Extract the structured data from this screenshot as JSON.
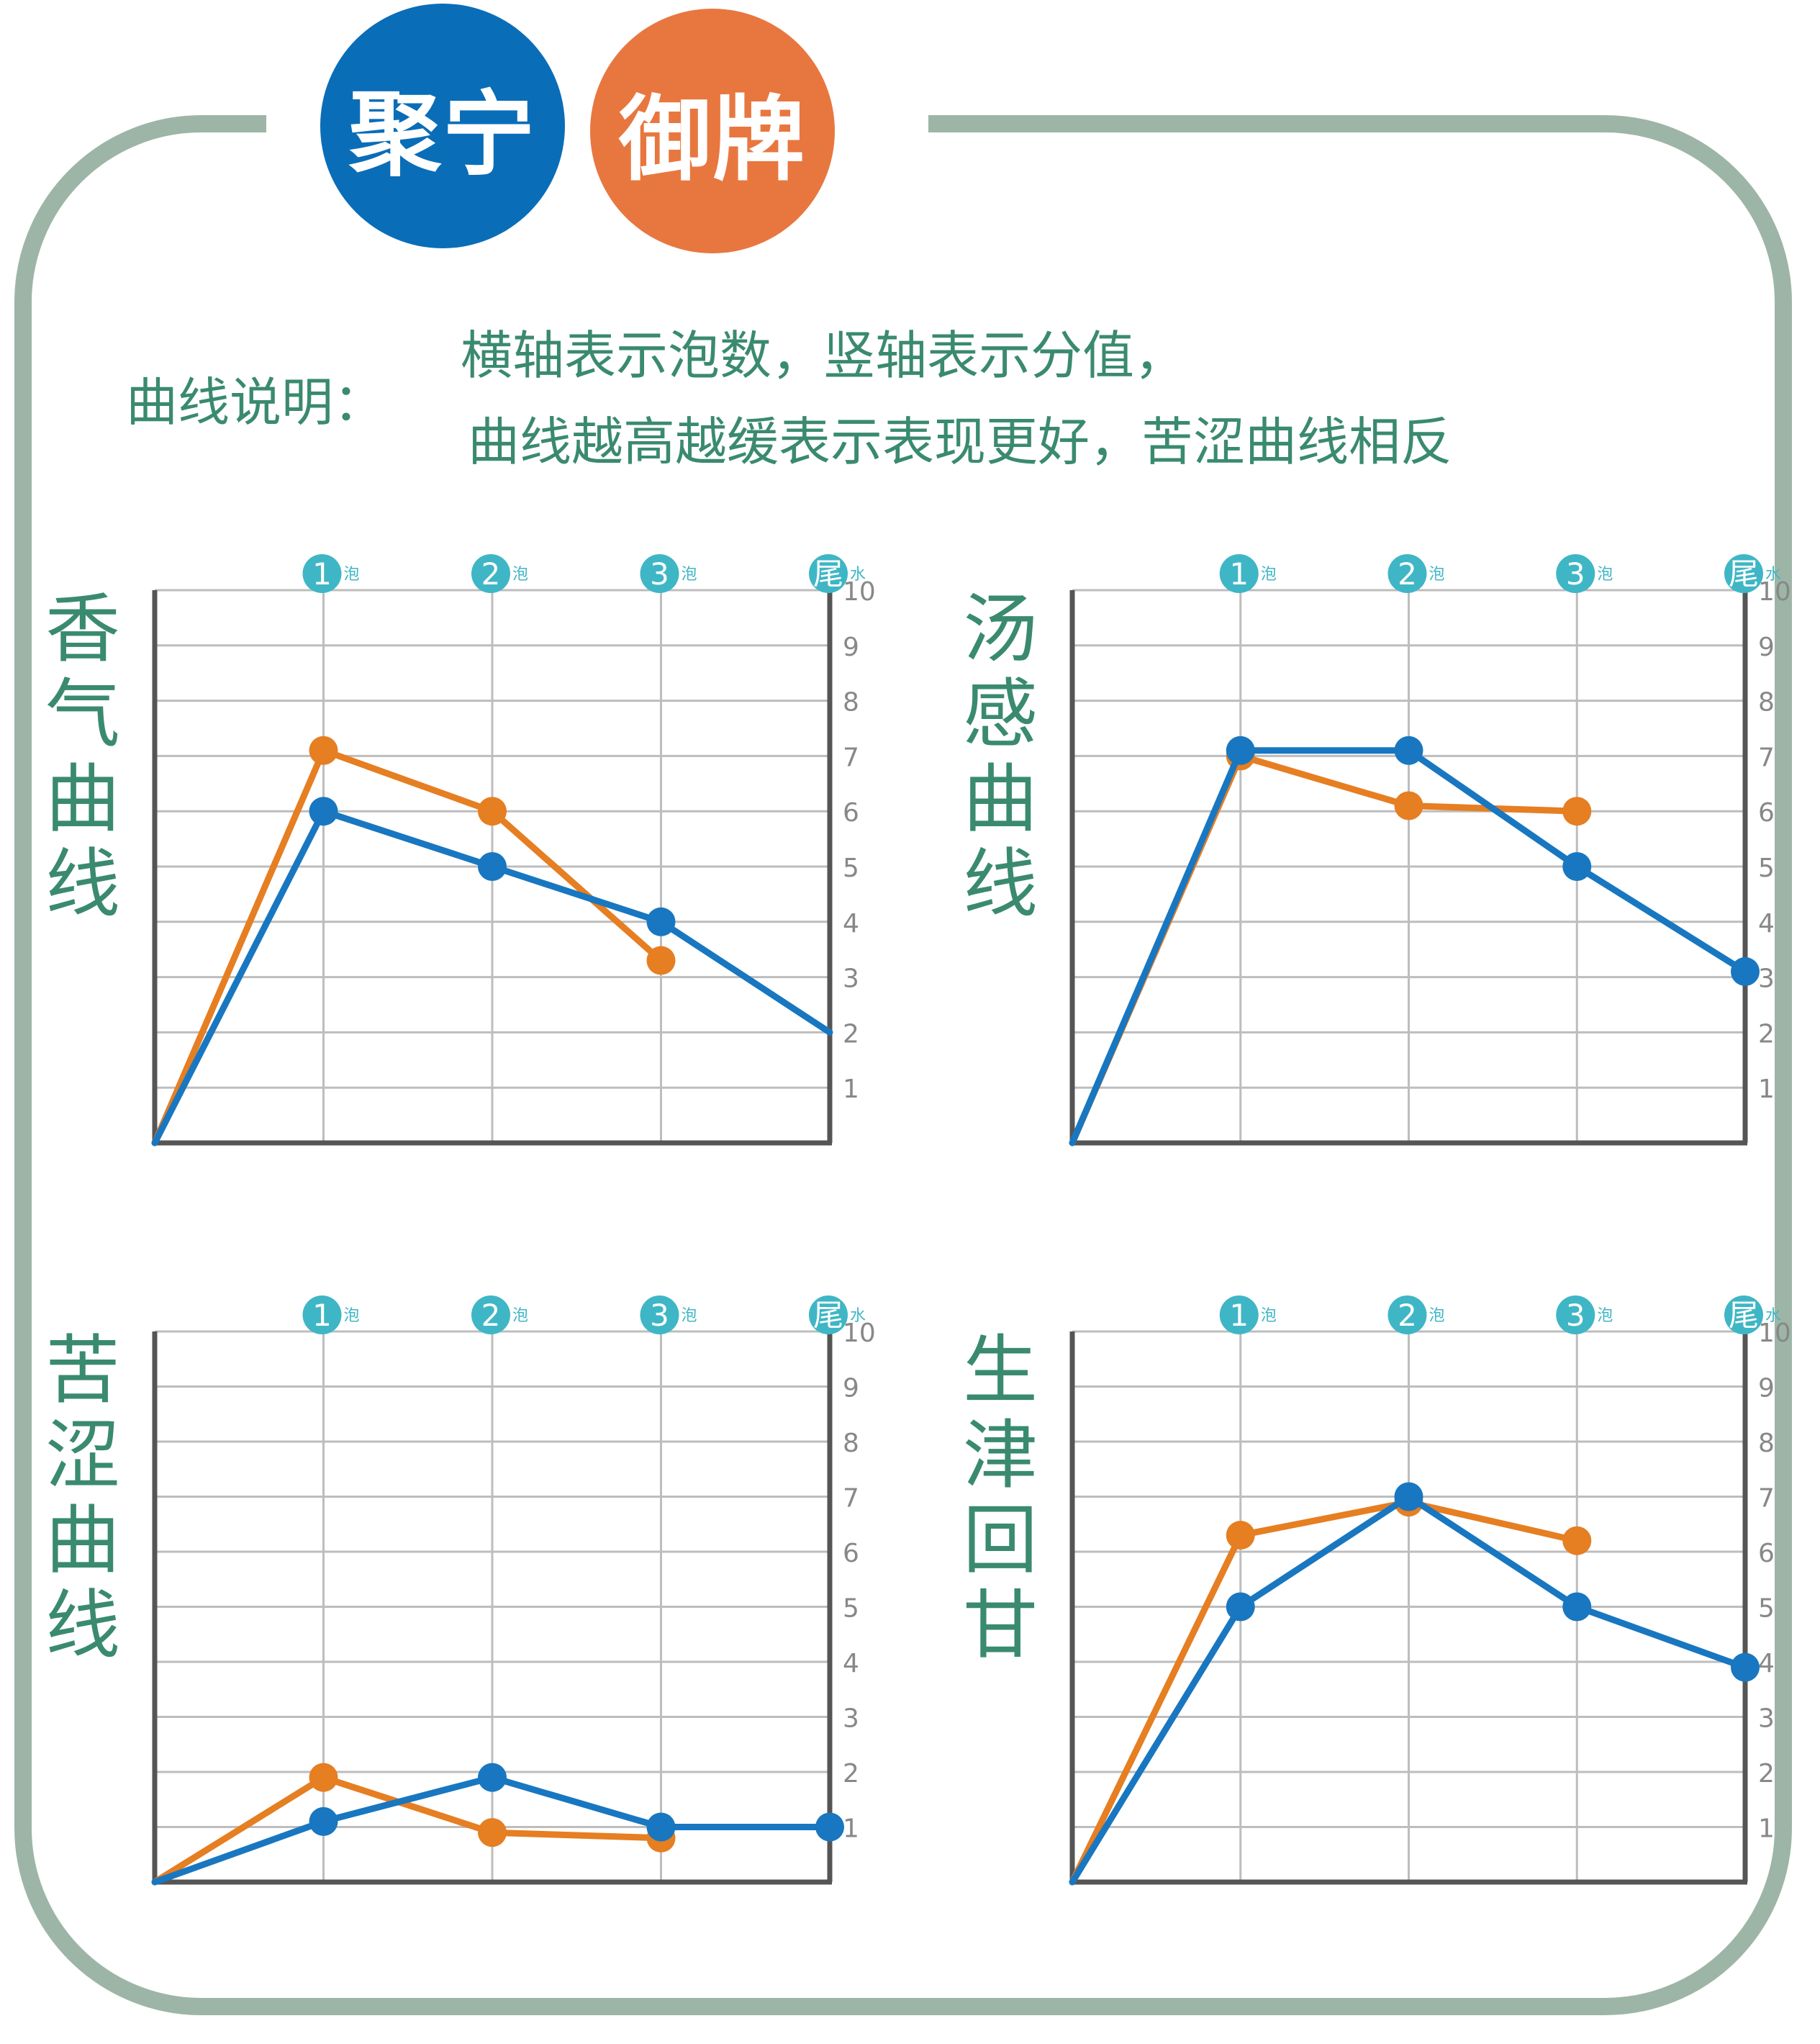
{
  "brand": {
    "left_logo": "聚宁",
    "right_logo": "御牌",
    "left_color": "#0a6db8",
    "right_color": "#e8773f"
  },
  "explanation": {
    "label": "曲线说明：",
    "line1": "横轴表示泡数，竖轴表示分值，",
    "line2": "曲线越高越缓表示表现更好，苦涩曲线相反"
  },
  "colors": {
    "series_blue": "#1877c0",
    "series_orange": "#e67e22",
    "grid": "#bdbdbd",
    "axis": "#555555",
    "marker_bg": "#3fb6c5",
    "text_green": "#3a8a70"
  },
  "chart_data": [
    {
      "type": "line",
      "title": "香气曲线",
      "x_markers": [
        {
          "num": "1",
          "suffix": "泡"
        },
        {
          "num": "2",
          "suffix": "泡"
        },
        {
          "num": "3",
          "suffix": "泡"
        },
        {
          "num": "尾",
          "suffix": "水"
        }
      ],
      "yticks": [
        "1",
        "2",
        "3",
        "4",
        "5",
        "6",
        "7",
        "8",
        "9",
        "10"
      ],
      "ylim": [
        0,
        10
      ],
      "x": [
        0,
        1,
        2,
        3,
        4
      ],
      "series": [
        {
          "color": "blue",
          "values": [
            0,
            6,
            5,
            4,
            2
          ],
          "point_markers": [
            false,
            true,
            true,
            true,
            false
          ]
        },
        {
          "color": "orange",
          "values": [
            0,
            7.1,
            6,
            3.3,
            null
          ],
          "point_markers": [
            false,
            true,
            true,
            true,
            false
          ]
        }
      ]
    },
    {
      "type": "line",
      "title": "汤感曲线",
      "x_markers": [
        {
          "num": "1",
          "suffix": "泡"
        },
        {
          "num": "2",
          "suffix": "泡"
        },
        {
          "num": "3",
          "suffix": "泡"
        },
        {
          "num": "尾",
          "suffix": "水"
        }
      ],
      "yticks": [
        "1",
        "2",
        "3",
        "4",
        "5",
        "6",
        "7",
        "8",
        "9",
        "10"
      ],
      "ylim": [
        0,
        10
      ],
      "x": [
        0,
        1,
        2,
        3,
        4
      ],
      "series": [
        {
          "color": "blue",
          "values": [
            0,
            7.1,
            7.1,
            5,
            3.1
          ],
          "point_markers": [
            false,
            true,
            true,
            true,
            true
          ]
        },
        {
          "color": "orange",
          "values": [
            0,
            7,
            6.1,
            6,
            null
          ],
          "point_markers": [
            false,
            true,
            true,
            true,
            false
          ]
        }
      ]
    },
    {
      "type": "line",
      "title": "苦涩曲线",
      "x_markers": [
        {
          "num": "1",
          "suffix": "泡"
        },
        {
          "num": "2",
          "suffix": "泡"
        },
        {
          "num": "3",
          "suffix": "泡"
        },
        {
          "num": "尾",
          "suffix": "水"
        }
      ],
      "yticks": [
        "1",
        "2",
        "3",
        "4",
        "5",
        "6",
        "7",
        "8",
        "9",
        "10"
      ],
      "ylim": [
        0,
        10
      ],
      "x": [
        0,
        1,
        2,
        3,
        4
      ],
      "series": [
        {
          "color": "blue",
          "values": [
            0,
            1.1,
            1.9,
            1,
            1
          ],
          "point_markers": [
            false,
            true,
            true,
            true,
            true
          ]
        },
        {
          "color": "orange",
          "values": [
            0,
            1.9,
            0.9,
            0.8,
            null
          ],
          "point_markers": [
            false,
            true,
            true,
            true,
            false
          ]
        }
      ]
    },
    {
      "type": "line",
      "title": "生津回甘",
      "x_markers": [
        {
          "num": "1",
          "suffix": "泡"
        },
        {
          "num": "2",
          "suffix": "泡"
        },
        {
          "num": "3",
          "suffix": "泡"
        },
        {
          "num": "尾",
          "suffix": "水"
        }
      ],
      "yticks": [
        "1",
        "2",
        "3",
        "4",
        "5",
        "6",
        "7",
        "8",
        "9",
        "10"
      ],
      "ylim": [
        0,
        10
      ],
      "x": [
        0,
        1,
        2,
        3,
        4
      ],
      "series": [
        {
          "color": "blue",
          "values": [
            0,
            5,
            7,
            5,
            3.9
          ],
          "point_markers": [
            false,
            true,
            true,
            true,
            true
          ]
        },
        {
          "color": "orange",
          "values": [
            0,
            6.3,
            6.9,
            6.2,
            null
          ],
          "point_markers": [
            false,
            true,
            true,
            true,
            false
          ]
        }
      ]
    }
  ]
}
